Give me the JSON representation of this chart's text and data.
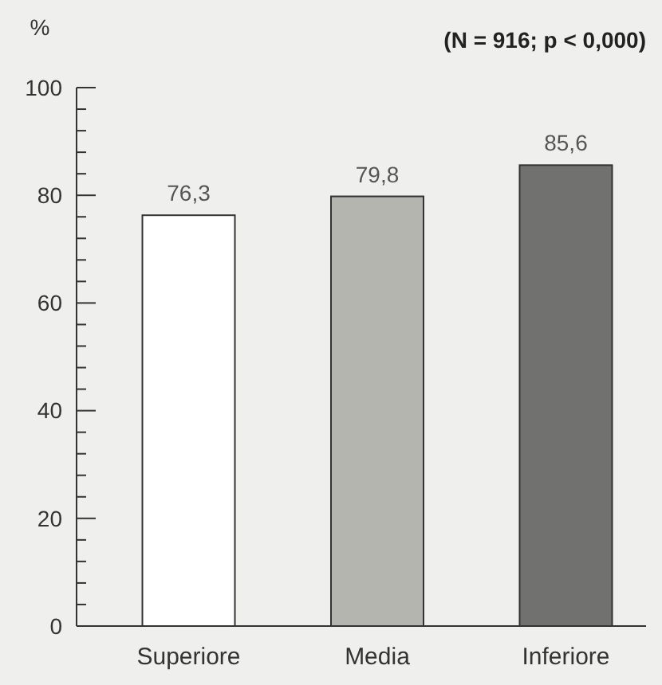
{
  "chart_data": {
    "type": "bar",
    "title": "(N = 916; p < 0,000)",
    "ylabel": "%",
    "categories": [
      "Superiore",
      "Media",
      "Inferiore"
    ],
    "values": [
      76.3,
      79.8,
      85.6
    ],
    "value_labels": [
      "76,3",
      "79,8",
      "85,6"
    ],
    "colors": [
      "#ffffff",
      "#b5b5b0",
      "#717170"
    ],
    "ylim": [
      0,
      100
    ],
    "yticks": [
      0,
      {
        "value": 4,
        "label": null
      },
      {
        "value": 8,
        "label": null
      },
      {
        "value": 12,
        "label": null
      },
      {
        "value": 16,
        "label": null
      },
      20,
      {
        "value": 24,
        "label": null
      },
      {
        "value": 28,
        "label": null
      },
      {
        "value": 32,
        "label": null
      },
      {
        "value": 36,
        "label": null
      },
      40,
      {
        "value": 44,
        "label": null
      },
      {
        "value": 48,
        "label": null
      },
      {
        "value": 52,
        "label": null
      },
      {
        "value": 56,
        "label": null
      },
      60,
      {
        "value": 64,
        "label": null
      },
      {
        "value": 68,
        "label": null
      },
      {
        "value": 72,
        "label": null
      },
      {
        "value": 76,
        "label": null
      },
      80,
      {
        "value": 84,
        "label": null
      },
      {
        "value": 88,
        "label": null
      },
      {
        "value": 92,
        "label": null
      },
      {
        "value": 96,
        "label": null
      },
      100
    ]
  }
}
